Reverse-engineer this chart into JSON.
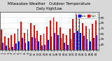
{
  "title": "Milwaukee Weather   Outdoor Temperature",
  "subtitle": "Daily High/Low",
  "background_color": "#d8d8d8",
  "plot_bg_color": "#ffffff",
  "highs": [
    68,
    55,
    52,
    58,
    60,
    70,
    82,
    62,
    68,
    80,
    76,
    66,
    58,
    60,
    73,
    85,
    90,
    82,
    72,
    60,
    58,
    70,
    88,
    95,
    88,
    80,
    74,
    70,
    78,
    85
  ],
  "lows": [
    44,
    38,
    34,
    36,
    42,
    46,
    52,
    44,
    46,
    54,
    52,
    46,
    38,
    40,
    48,
    55,
    62,
    58,
    52,
    44,
    40,
    50,
    62,
    66,
    62,
    56,
    50,
    46,
    52,
    58
  ],
  "days": [
    "1",
    "2",
    "3",
    "4",
    "5",
    "6",
    "7",
    "8",
    "9",
    "10",
    "11",
    "12",
    "13",
    "14",
    "15",
    "16",
    "17",
    "18",
    "19",
    "20",
    "21",
    "22",
    "23",
    "24",
    "25",
    "26",
    "27",
    "28",
    "29",
    "30"
  ],
  "highlight_idx": 23,
  "high_color": "#ff0000",
  "low_color": "#0000ff",
  "bar_width": 0.38,
  "ylim": [
    30,
    100
  ],
  "yticks": [
    40,
    50,
    60,
    70,
    80,
    90
  ],
  "title_fontsize": 4.0,
  "tick_fontsize": 3.0
}
